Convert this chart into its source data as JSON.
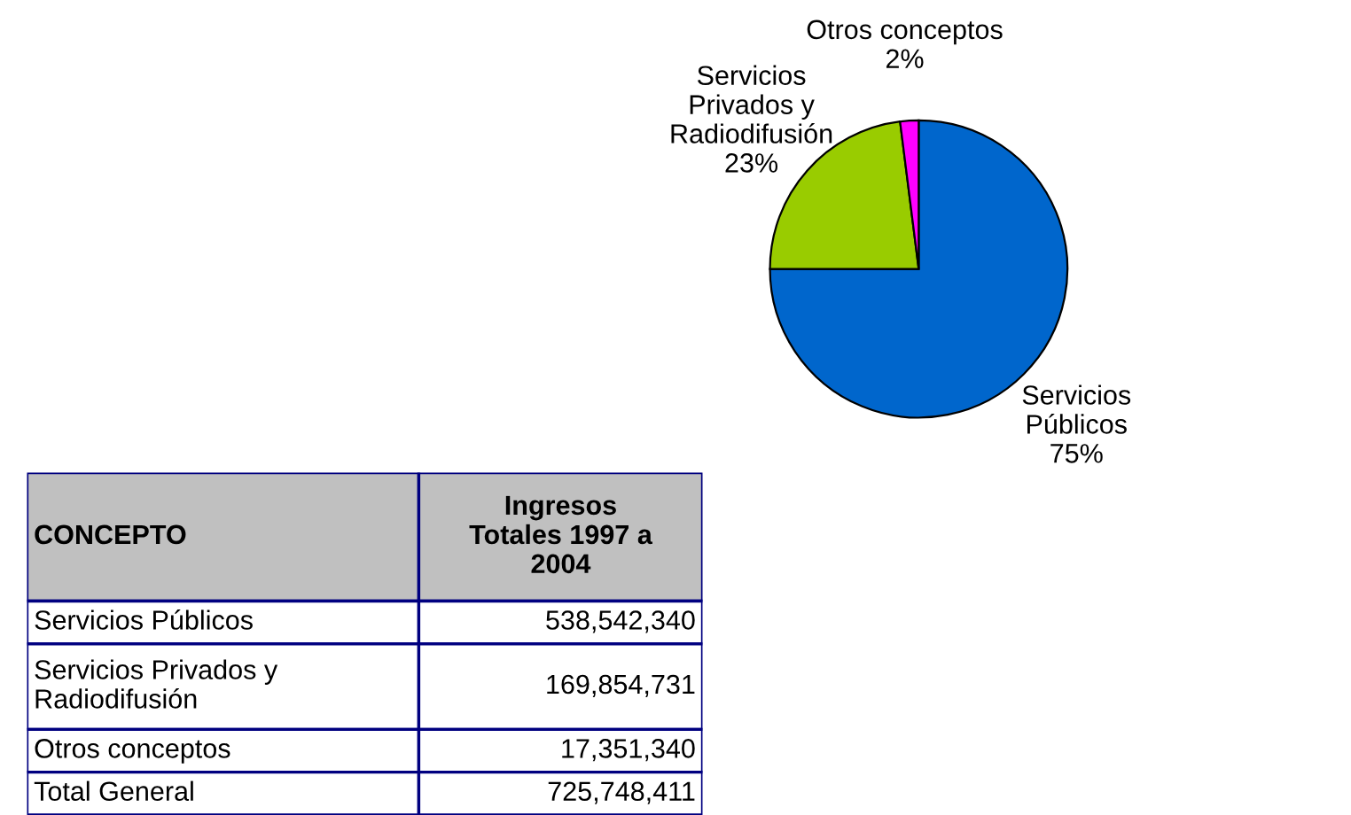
{
  "chart_data": {
    "type": "pie",
    "categories": [
      "Servicios\nPúblicos",
      "Servicios\nPrivados y\nRadiodifusión",
      "Otros conceptos"
    ],
    "values": [
      75,
      23,
      2
    ],
    "colors": [
      "#0066cc",
      "#99cc00",
      "#ff00ff"
    ],
    "value_labels": [
      "75%",
      "23%",
      "2%"
    ],
    "annotations": [
      "CONCEPTO",
      "Ingresos\nTotales 1997 a\n2004",
      "Servicios Públicos",
      "538,542,340",
      "Servicios Privados y\nRadiodifusión",
      "169,854,731",
      "Otros conceptos",
      "17,351,340",
      "Total General",
      "725,748,411"
    ]
  }
}
